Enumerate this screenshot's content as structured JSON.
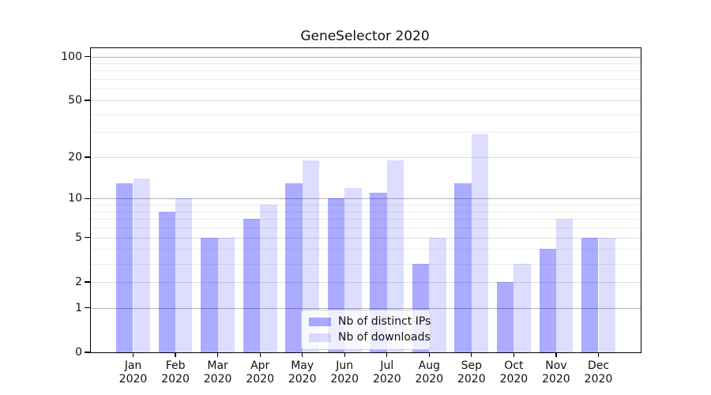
{
  "title": "GeneSelector 2020",
  "legend": {
    "items": [
      {
        "label": "Nb of distinct IPs",
        "color": "rgba(0,0,255,0.33)"
      },
      {
        "label": "Nb of downloads",
        "color": "rgba(0,0,255,0.135)"
      }
    ]
  },
  "chart_data": {
    "type": "bar",
    "title": "GeneSelector 2020",
    "categories": [
      "Jan 2020",
      "Feb 2020",
      "Mar 2020",
      "Apr 2020",
      "May 2020",
      "Jun 2020",
      "Jul 2020",
      "Aug 2020",
      "Sep 2020",
      "Oct 2020",
      "Nov 2020",
      "Dec 2020"
    ],
    "series": [
      {
        "name": "Nb of distinct IPs",
        "values": [
          13,
          8,
          5,
          7,
          13,
          10,
          11,
          3,
          13,
          2,
          4,
          5
        ]
      },
      {
        "name": "Nb of downloads",
        "values": [
          14,
          10,
          5,
          9,
          19,
          12,
          19,
          5,
          29,
          3,
          7,
          5
        ]
      }
    ],
    "xlabel": "",
    "ylabel": "",
    "y_scale": "log10(value+1)",
    "ylim": [
      0,
      114
    ],
    "y_ticks_labeled": [
      100,
      50,
      20,
      10,
      5,
      2,
      1,
      0
    ],
    "y_gridlines_strong": [
      1,
      10,
      100
    ],
    "y_gridlines_mid": [
      2,
      5,
      20,
      50
    ],
    "y_gridlines_minor": [
      3,
      4,
      6,
      7,
      8,
      9,
      30,
      40,
      60,
      70,
      80,
      90
    ],
    "grid": true,
    "legend_position": "lower center"
  }
}
